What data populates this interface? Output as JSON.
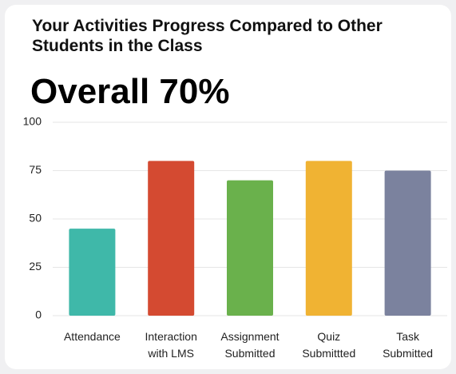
{
  "chart_data": {
    "type": "bar",
    "title": "Your Activities Progress Compared to Other Students in the Class",
    "subtitle": "Overall 70%",
    "categories": [
      "Attendance",
      "Interaction with LMS",
      "Assignment Submitted",
      "Quiz Submittted",
      "Task Submitted"
    ],
    "values": [
      45,
      80,
      70,
      80,
      75
    ],
    "colors": [
      "#3fb8a9",
      "#d44a31",
      "#6ab14c",
      "#f0b333",
      "#7b829e"
    ],
    "ylim": [
      0,
      100
    ],
    "yticks": [
      0,
      25,
      50,
      75,
      100
    ],
    "grid": true
  }
}
